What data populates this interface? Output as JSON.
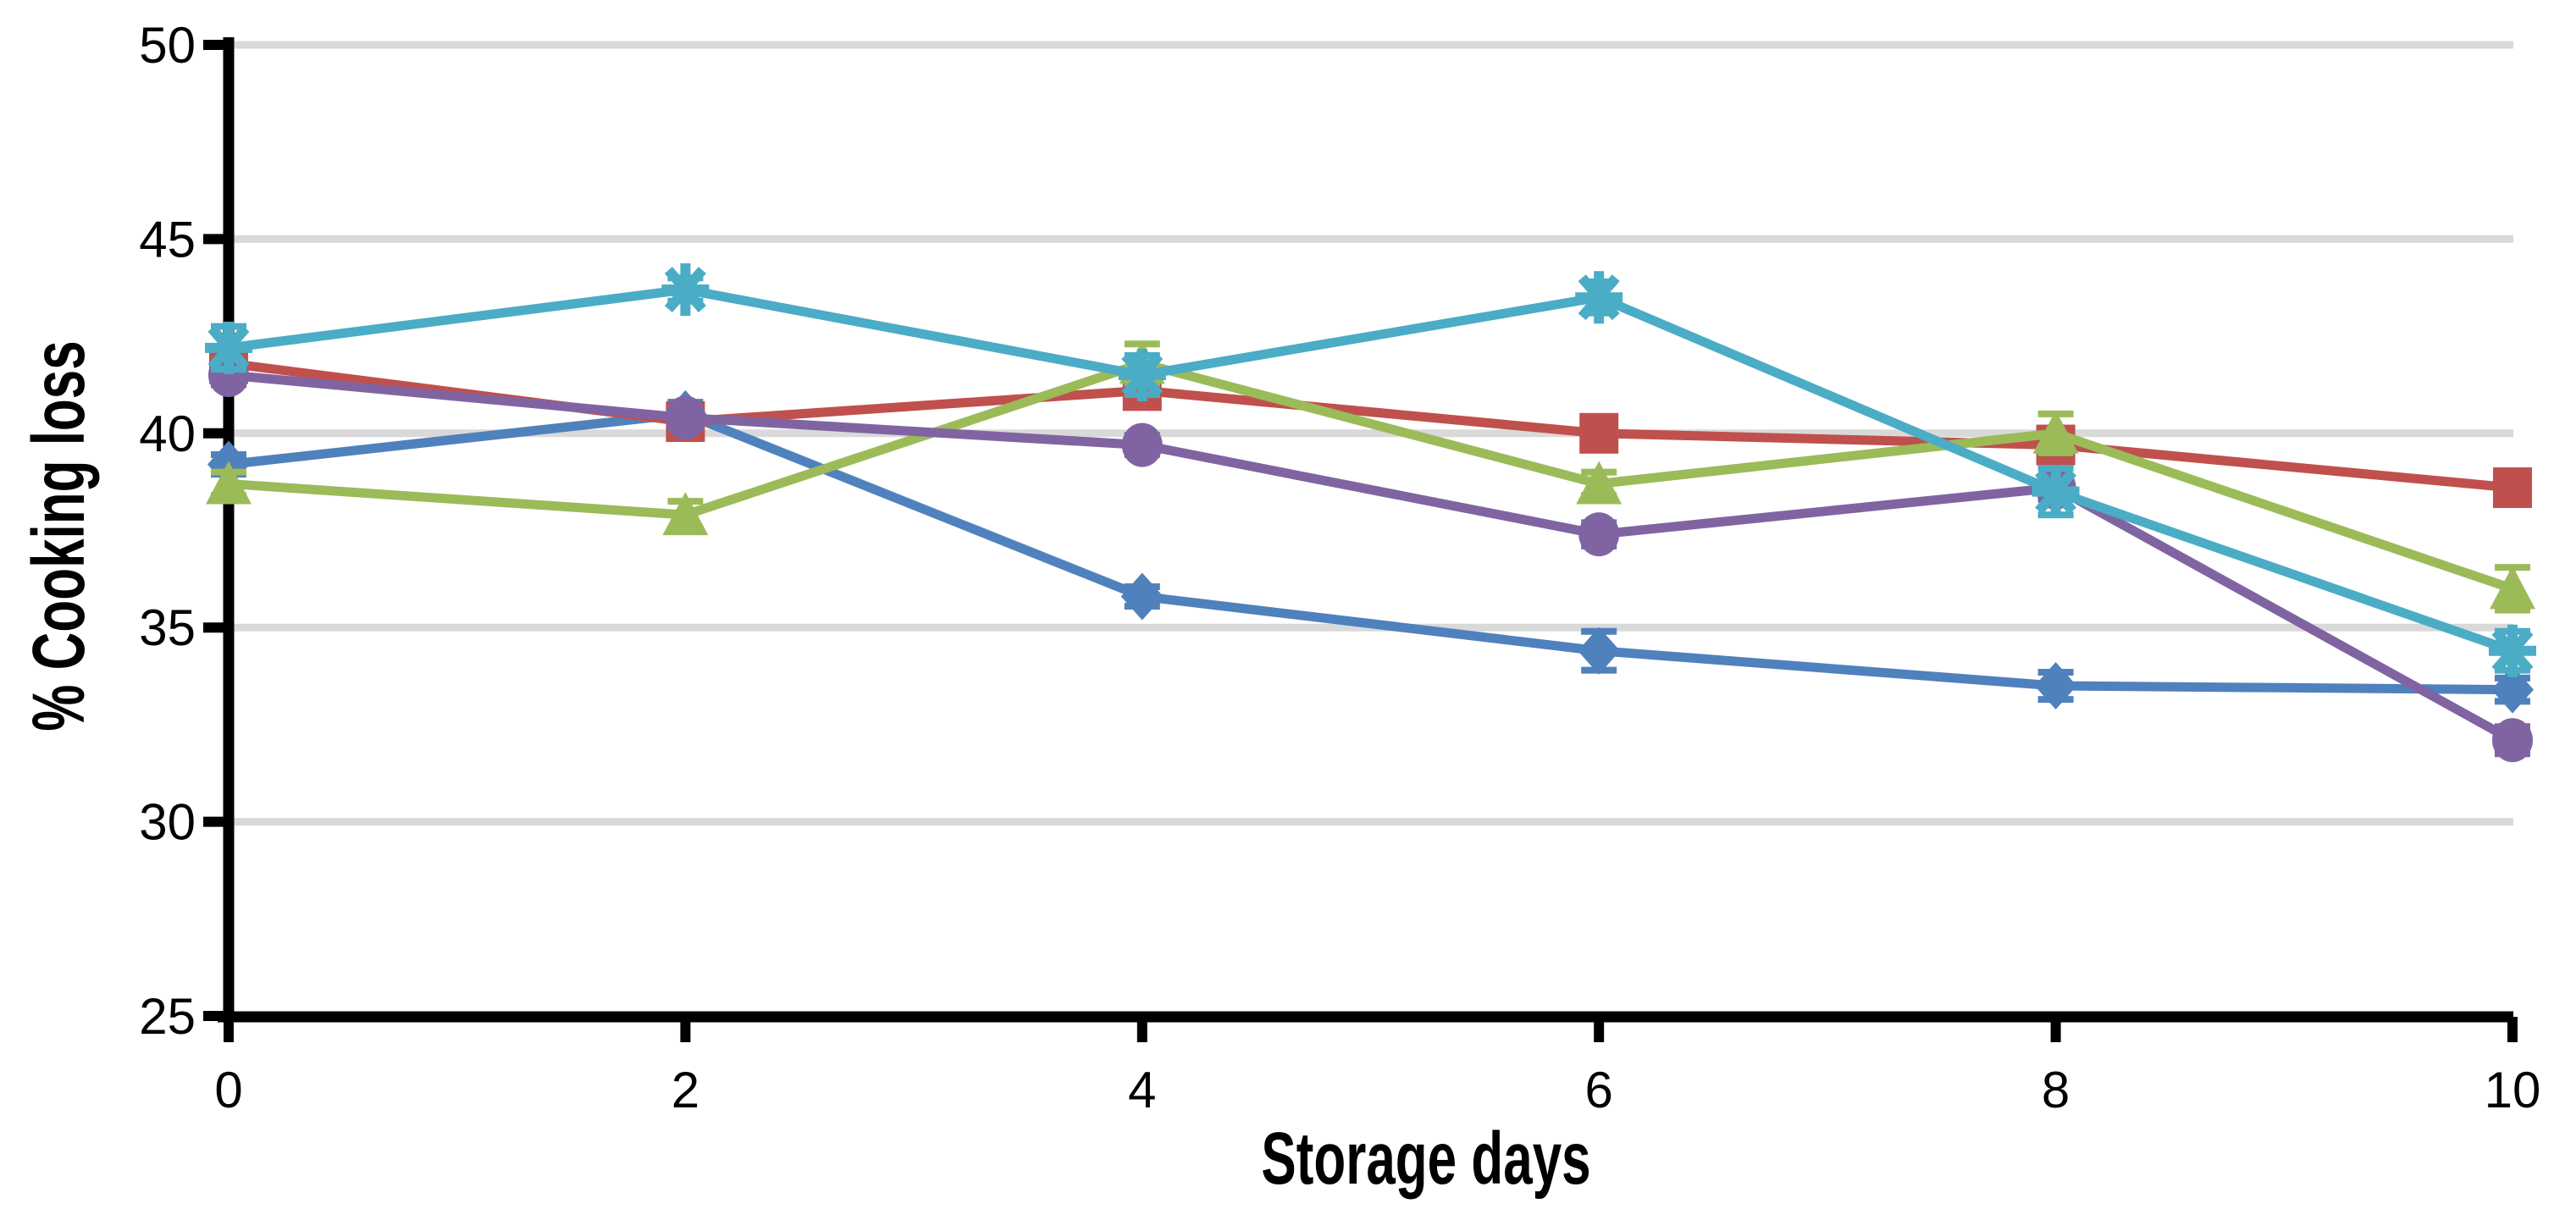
{
  "chart_data": {
    "type": "line",
    "title": "",
    "xlabel": "Storage days",
    "ylabel": "% Cooking loss",
    "x": [
      0,
      2,
      4,
      6,
      8,
      10
    ],
    "xlim": [
      0,
      10
    ],
    "ylim": [
      25,
      50
    ],
    "yticks": [
      25,
      30,
      35,
      40,
      45,
      50
    ],
    "xticks": [
      0,
      2,
      4,
      6,
      8,
      10
    ],
    "grid": "horizontal",
    "legend_position": "none",
    "background_color": "#FFFFFF",
    "grid_color": "#D9D9D9",
    "axis_color": "#000000",
    "series": [
      {
        "name": "blue-diamond",
        "marker": "diamond",
        "color": "#4F81BD",
        "values": [
          39.2,
          40.5,
          35.8,
          34.4,
          33.5,
          33.4
        ],
        "errors": [
          0.25,
          0.3,
          0.25,
          0.5,
          0.35,
          0.3
        ]
      },
      {
        "name": "red-square",
        "marker": "square",
        "color": "#C0504D",
        "values": [
          41.8,
          40.3,
          41.1,
          40.0,
          39.7,
          38.6
        ],
        "errors": [
          0.25,
          0.25,
          0.25,
          0.25,
          0.25,
          0.25
        ]
      },
      {
        "name": "green-triangle",
        "marker": "triangle",
        "color": "#9BBB59",
        "values": [
          38.7,
          37.9,
          41.8,
          38.7,
          40.0,
          36.0
        ],
        "errors": [
          0.3,
          0.35,
          0.5,
          0.3,
          0.5,
          0.55
        ]
      },
      {
        "name": "purple-circle",
        "marker": "circle",
        "color": "#8064A2",
        "values": [
          41.5,
          40.4,
          39.7,
          37.4,
          38.6,
          32.1
        ],
        "errors": [
          0.25,
          0.25,
          0.25,
          0.3,
          0.3,
          0.35
        ]
      },
      {
        "name": "cyan-asterisk",
        "marker": "asterisk",
        "color": "#4BACC6",
        "values": [
          42.2,
          43.7,
          41.5,
          43.5,
          38.5,
          34.4
        ],
        "errors": [
          0.55,
          0.3,
          0.5,
          0.4,
          0.6,
          0.5
        ]
      }
    ]
  }
}
